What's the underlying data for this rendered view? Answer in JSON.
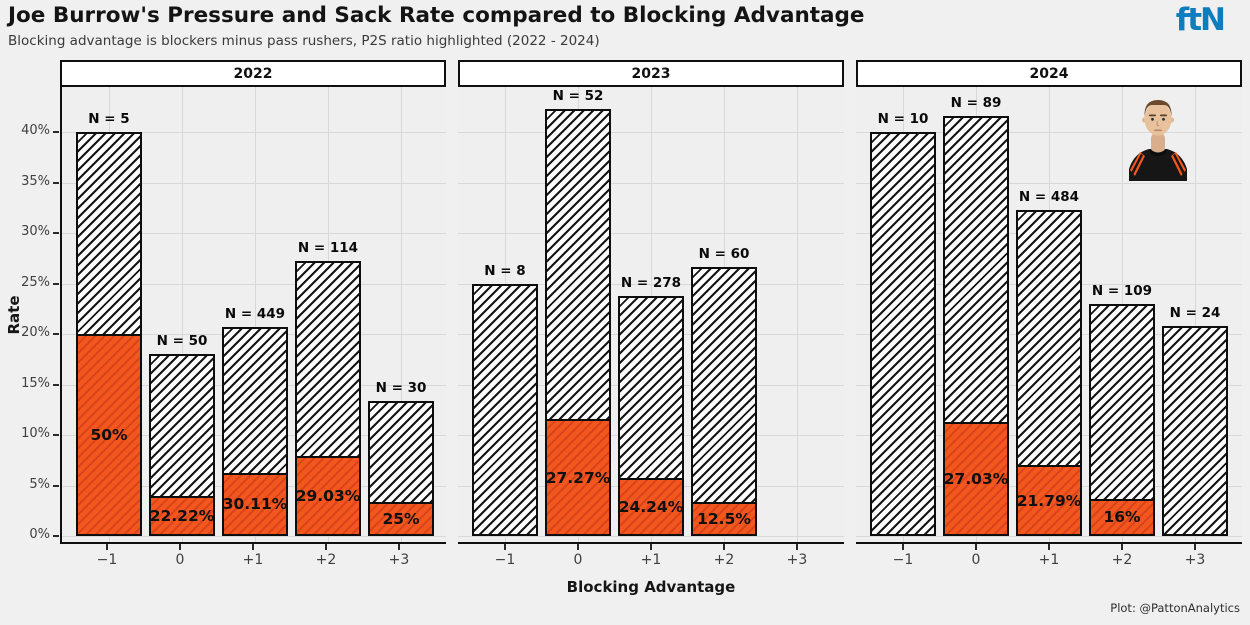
{
  "header": {
    "title": "Joe Burrow's Pressure and Sack Rate compared to Blocking Advantage",
    "subtitle": "Blocking advantage is blockers minus pass rushers, P2S ratio highlighted (2022 - 2024)",
    "logo": {
      "text": "ftN",
      "color": "#0E7DBE"
    }
  },
  "footer": {
    "credit": "Plot: @PattonAnalytics"
  },
  "colors": {
    "sack_fill": "#F4571E",
    "sack_hatch": "#D8441C",
    "pressure_fill": "#FDFDFD",
    "pressure_hatch": "#151515",
    "panel_bg": "#EFEFEF",
    "grid": "#D8D8D8",
    "axis": "#0F0F0F",
    "logo_blue": "#0E7DBE"
  },
  "chart_data": {
    "type": "bar",
    "title": "Joe Burrow's Pressure and Sack Rate compared to Blocking Advantage",
    "xlabel": "Blocking Advantage",
    "ylabel": "Rate",
    "ylim": [
      0,
      44.5
    ],
    "grid": true,
    "legend_position": "none",
    "ytick_values": [
      0,
      5,
      10,
      15,
      20,
      25,
      30,
      35,
      40
    ],
    "ytick_labels": [
      "0%",
      "5%",
      "10%",
      "15%",
      "20%",
      "25%",
      "30%",
      "35%",
      "40%"
    ],
    "categories": [
      "−1",
      "0",
      "+1",
      "+2",
      "+3"
    ],
    "facets": [
      {
        "label": "2022",
        "bars": [
          {
            "category": "−1",
            "n_label": "N = 5",
            "pressure_rate": 40,
            "sack_rate": 20,
            "p2s_label": "50%"
          },
          {
            "category": "0",
            "n_label": "N = 50",
            "pressure_rate": 18,
            "sack_rate": 4,
            "p2s_label": "22.22%"
          },
          {
            "category": "+1",
            "n_label": "N = 449",
            "pressure_rate": 20.71,
            "sack_rate": 6.24,
            "p2s_label": "30.11%"
          },
          {
            "category": "+2",
            "n_label": "N = 114",
            "pressure_rate": 27.19,
            "sack_rate": 7.89,
            "p2s_label": "29.03%"
          },
          {
            "category": "+3",
            "n_label": "N = 30",
            "pressure_rate": 13.33,
            "sack_rate": 3.33,
            "p2s_label": "25%"
          }
        ]
      },
      {
        "label": "2023",
        "bars": [
          {
            "category": "−1",
            "n_label": "N = 8",
            "pressure_rate": 25,
            "sack_rate": 0,
            "p2s_label": null
          },
          {
            "category": "0",
            "n_label": "N = 52",
            "pressure_rate": 42.31,
            "sack_rate": 11.54,
            "p2s_label": "27.27%"
          },
          {
            "category": "+1",
            "n_label": "N = 278",
            "pressure_rate": 23.74,
            "sack_rate": 5.76,
            "p2s_label": "24.24%"
          },
          {
            "category": "+2",
            "n_label": "N = 60",
            "pressure_rate": 26.67,
            "sack_rate": 3.33,
            "p2s_label": "12.5%"
          }
        ]
      },
      {
        "label": "2024",
        "has_player_image": true,
        "bars": [
          {
            "category": "−1",
            "n_label": "N = 10",
            "pressure_rate": 40,
            "sack_rate": 0,
            "p2s_label": null
          },
          {
            "category": "0",
            "n_label": "N = 89",
            "pressure_rate": 41.57,
            "sack_rate": 11.24,
            "p2s_label": "27.03%"
          },
          {
            "category": "+1",
            "n_label": "N = 484",
            "pressure_rate": 32.23,
            "sack_rate": 7.02,
            "p2s_label": "21.79%"
          },
          {
            "category": "+2",
            "n_label": "N = 109",
            "pressure_rate": 22.94,
            "sack_rate": 3.67,
            "p2s_label": "16%"
          },
          {
            "category": "+3",
            "n_label": "N = 24",
            "pressure_rate": 20.83,
            "sack_rate": 0,
            "p2s_label": null
          }
        ]
      }
    ]
  }
}
